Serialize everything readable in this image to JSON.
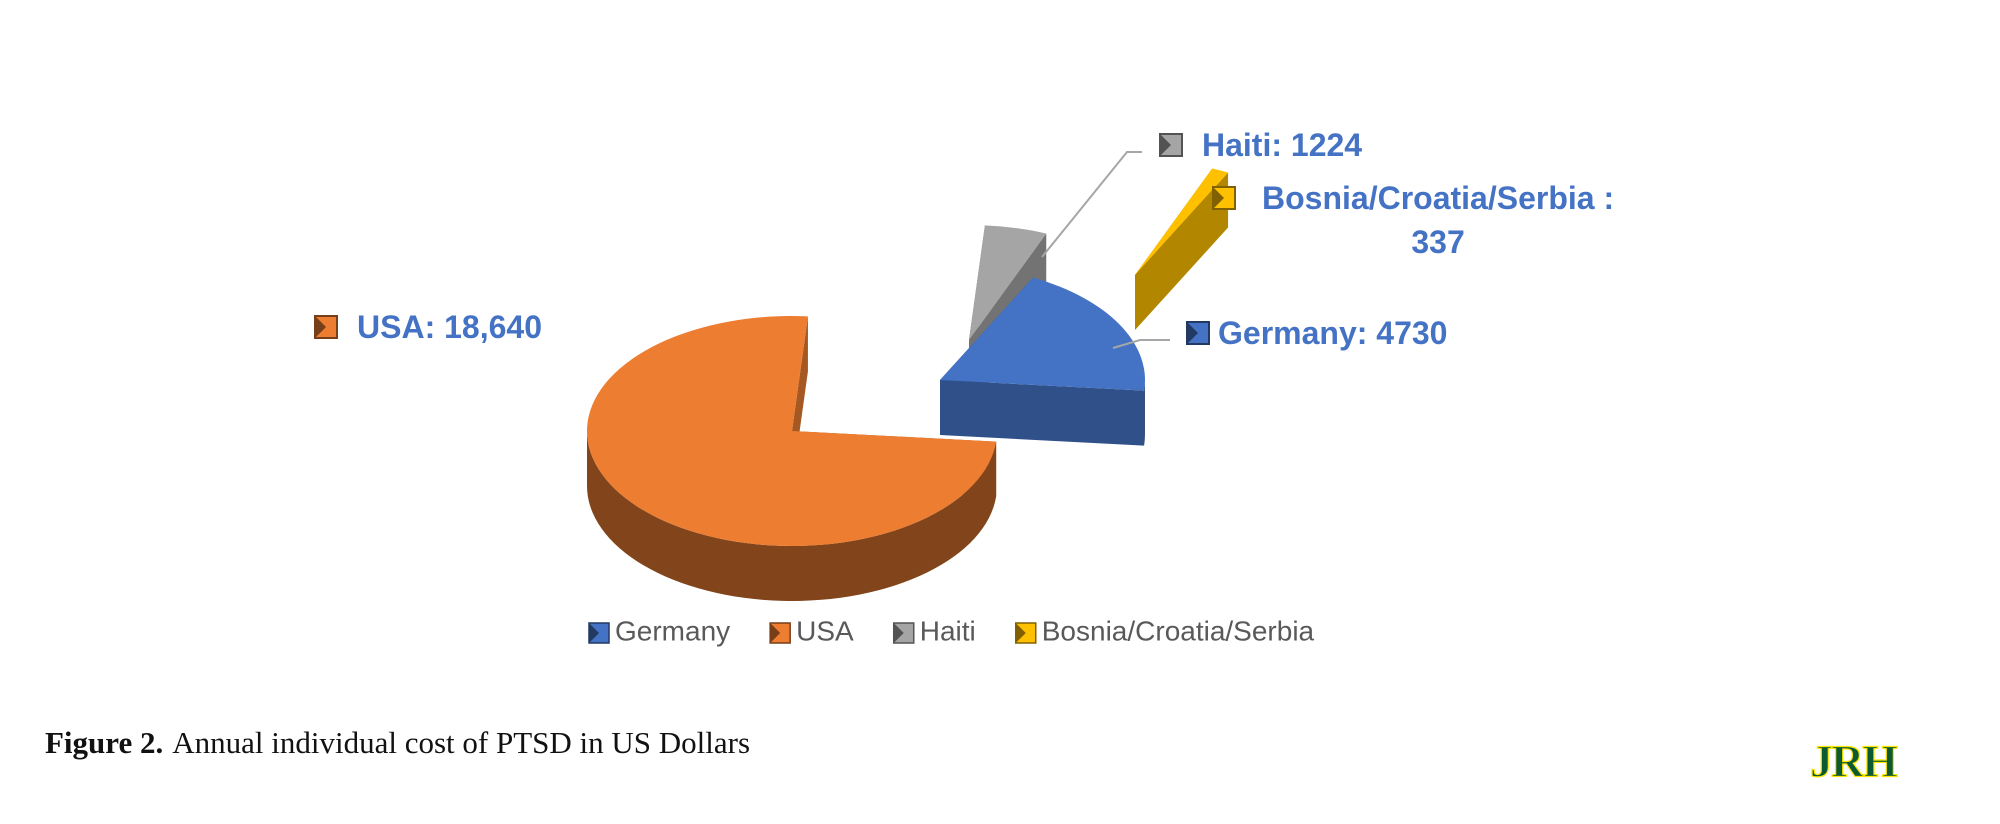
{
  "chart_data": {
    "type": "pie3d",
    "categories": [
      "Germany",
      "USA",
      "Haiti",
      "Bosnia/Croatia/Serbia"
    ],
    "values": [
      4730,
      18640,
      1224,
      337
    ],
    "value_labels": [
      "Germany: 4730",
      "USA: 18,640",
      "Haiti: 1224",
      "Bosnia/Croatia/Serbia  :\n337"
    ],
    "colors": [
      "#4472c4",
      "#ed7d31",
      "#a5a5a5",
      "#ffc000"
    ],
    "legend": "bottom"
  },
  "caption": {
    "label": "Figure 2.",
    "text": "Annual individual cost of PTSD in US Dollars"
  },
  "logo": "JRH"
}
